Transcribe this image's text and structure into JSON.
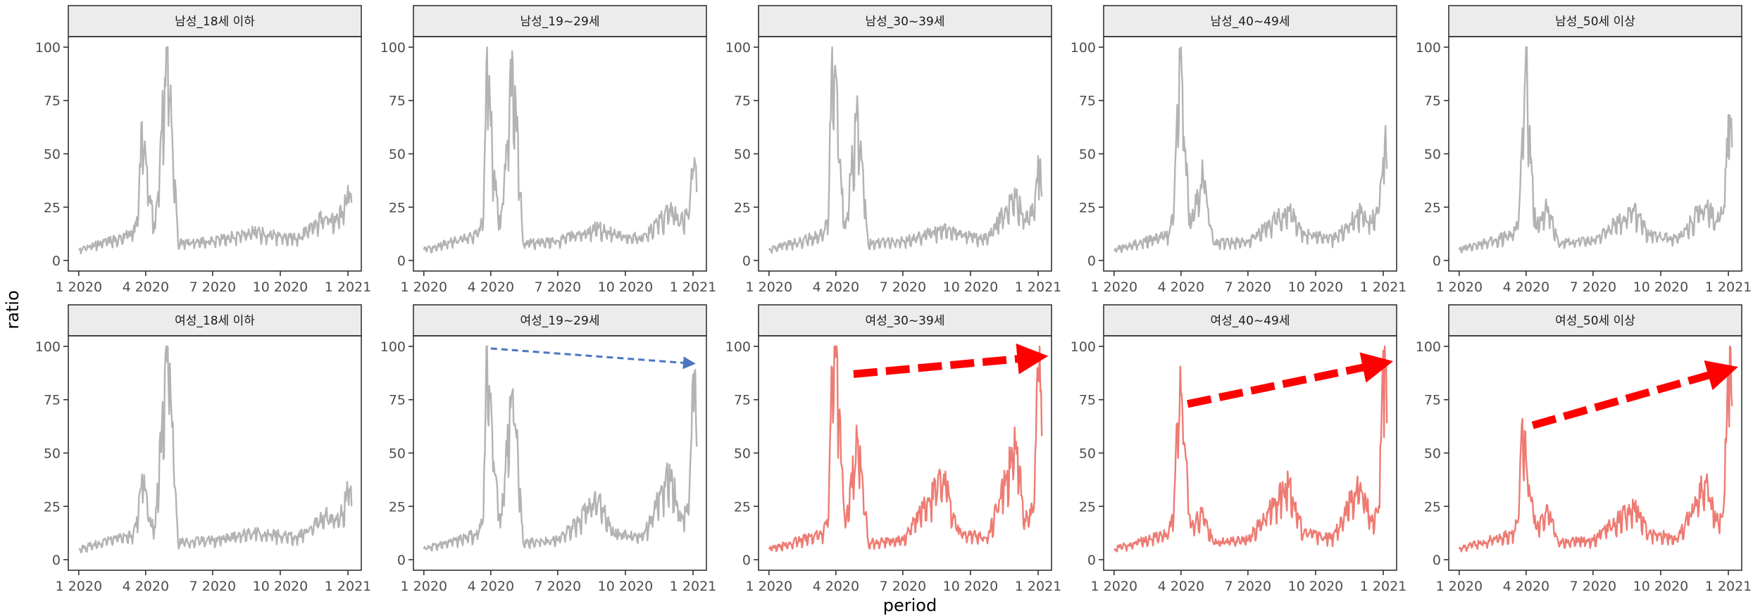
{
  "chart_data": {
    "type": "line",
    "layout": "facet grid, 2 rows x 5 columns",
    "xlabel": "period",
    "ylabel": "ratio",
    "x_ticks": [
      "1 2020",
      "4 2020",
      "7 2020",
      "10 2020",
      "1 2021"
    ],
    "y_ticks": [
      0,
      25,
      50,
      75,
      100
    ],
    "ylim": [
      0,
      100
    ],
    "xlim": [
      "2019-12-25",
      "2021-01-12"
    ],
    "grid": false,
    "legend": "none",
    "colors": {
      "default": "#b3b3b3",
      "highlight": "#ee7b73",
      "arrow_red": "#ff0000",
      "arrow_blue": "#4a76c2",
      "strip_fill": "#ececec",
      "border": "#333333"
    },
    "keypoints": [
      {
        "x": "2020-01-01",
        "y": 5
      },
      {
        "x": "2020-03-15",
        "y": 12
      },
      {
        "x": "2020-03-22",
        "y": 20
      },
      {
        "x": "2020-03-27",
        "y": "peak_a"
      },
      {
        "x": "2020-04-01",
        "y": "peak_b"
      },
      {
        "x": "2020-04-05",
        "y": "mid"
      },
      {
        "x": "2020-04-14",
        "y": 15
      },
      {
        "x": "2020-05-01",
        "y": "spike"
      },
      {
        "x": "2020-05-15",
        "y": 8
      },
      {
        "x": "2020-07-01",
        "y": 9
      },
      {
        "x": "2020-08-25",
        "y": "bump1"
      },
      {
        "x": "2020-09-15",
        "y": 12
      },
      {
        "x": "2020-10-25",
        "y": 10
      },
      {
        "x": "2020-12-01",
        "y": "bump2"
      },
      {
        "x": "2020-12-15",
        "y": 18
      },
      {
        "x": "2020-12-25",
        "y": 22
      },
      {
        "x": "2021-01-03",
        "y": "end_peak"
      },
      {
        "x": "2021-01-06",
        "y": "end_final"
      }
    ],
    "panels": [
      {
        "label": "남성_18세 이하",
        "highlight": false,
        "peaks": {
          "peak_a": 65,
          "peak_b": 49,
          "mid": 30,
          "spike": 100,
          "bump1": 13,
          "bump2": 20,
          "end_peak": 32,
          "end_final": 27
        }
      },
      {
        "label": "남성_19~29세",
        "highlight": false,
        "peaks": {
          "peak_a": 100,
          "peak_b": 63,
          "mid": 38,
          "spike": 92,
          "bump1": 15,
          "bump2": 23,
          "end_peak": 48,
          "end_final": 32
        }
      },
      {
        "label": "남성_30~39세",
        "highlight": false,
        "peaks": {
          "peak_a": 100,
          "peak_b": 87,
          "mid": 46,
          "spike": 69,
          "bump1": 14,
          "bump2": 30,
          "end_peak": 47,
          "end_final": 30
        }
      },
      {
        "label": "남성_40~49세",
        "highlight": false,
        "peaks": {
          "peak_a": 73,
          "peak_b": 100,
          "mid": 58,
          "spike": 40,
          "bump1": 23,
          "bump2": 22,
          "end_peak": 55,
          "end_final": 43
        }
      },
      {
        "label": "남성_50세 이상",
        "highlight": false,
        "peaks": {
          "peak_a": 62,
          "peak_b": 100,
          "mid": 58,
          "spike": 25,
          "bump1": 23,
          "bump2": 26,
          "end_peak": 68,
          "end_final": 53
        }
      },
      {
        "label": "여성_18세 이하",
        "highlight": false,
        "peaks": {
          "peak_a": 40,
          "peak_b": 33,
          "mid": 18,
          "spike": 100,
          "bump1": 12,
          "bump2": 20,
          "end_peak": 33,
          "end_final": 25
        }
      },
      {
        "label": "여성_19~29세",
        "highlight": false,
        "peaks": {
          "peak_a": 100,
          "peak_b": 78,
          "mid": 46,
          "spike": 80,
          "bump1": 27,
          "bump2": 40,
          "end_peak": 88,
          "end_final": 53
        }
      },
      {
        "label": "여성_30~39세",
        "highlight": true,
        "peaks": {
          "peak_a": 90,
          "peak_b": 95,
          "mid": 65,
          "spike": 56,
          "bump1": 37,
          "bump2": 52,
          "end_peak": 100,
          "end_final": 58
        }
      },
      {
        "label": "여성_40~49세",
        "highlight": true,
        "peaks": {
          "peak_a": 64,
          "peak_b": 78,
          "mid": 55,
          "spike": 22,
          "bump1": 34,
          "bump2": 36,
          "end_peak": 100,
          "end_final": 64
        }
      },
      {
        "label": "여성_50세 이상",
        "highlight": true,
        "peaks": {
          "peak_a": 66,
          "peak_b": 47,
          "mid": 35,
          "spike": 22,
          "bump1": 24,
          "bump2": 36,
          "end_peak": 100,
          "end_final": 72
        }
      }
    ],
    "annotations": [
      {
        "panel": 6,
        "kind": "dashed-arrow",
        "color": "blue",
        "from": {
          "x": "2020-04-01",
          "y": 99
        },
        "to": {
          "x": "2020-12-30",
          "y": 92
        }
      },
      {
        "panel": 7,
        "kind": "dashed-arrow",
        "color": "red",
        "from": {
          "x": "2020-04-25",
          "y": 87
        },
        "to": {
          "x": "2020-12-31",
          "y": 95
        }
      },
      {
        "panel": 8,
        "kind": "dashed-arrow",
        "color": "red",
        "from": {
          "x": "2020-04-10",
          "y": 73
        },
        "to": {
          "x": "2020-12-31",
          "y": 92
        }
      },
      {
        "panel": 9,
        "kind": "dashed-arrow",
        "color": "red",
        "from": {
          "x": "2020-04-10",
          "y": 63
        },
        "to": {
          "x": "2020-12-31",
          "y": 89
        }
      }
    ]
  }
}
